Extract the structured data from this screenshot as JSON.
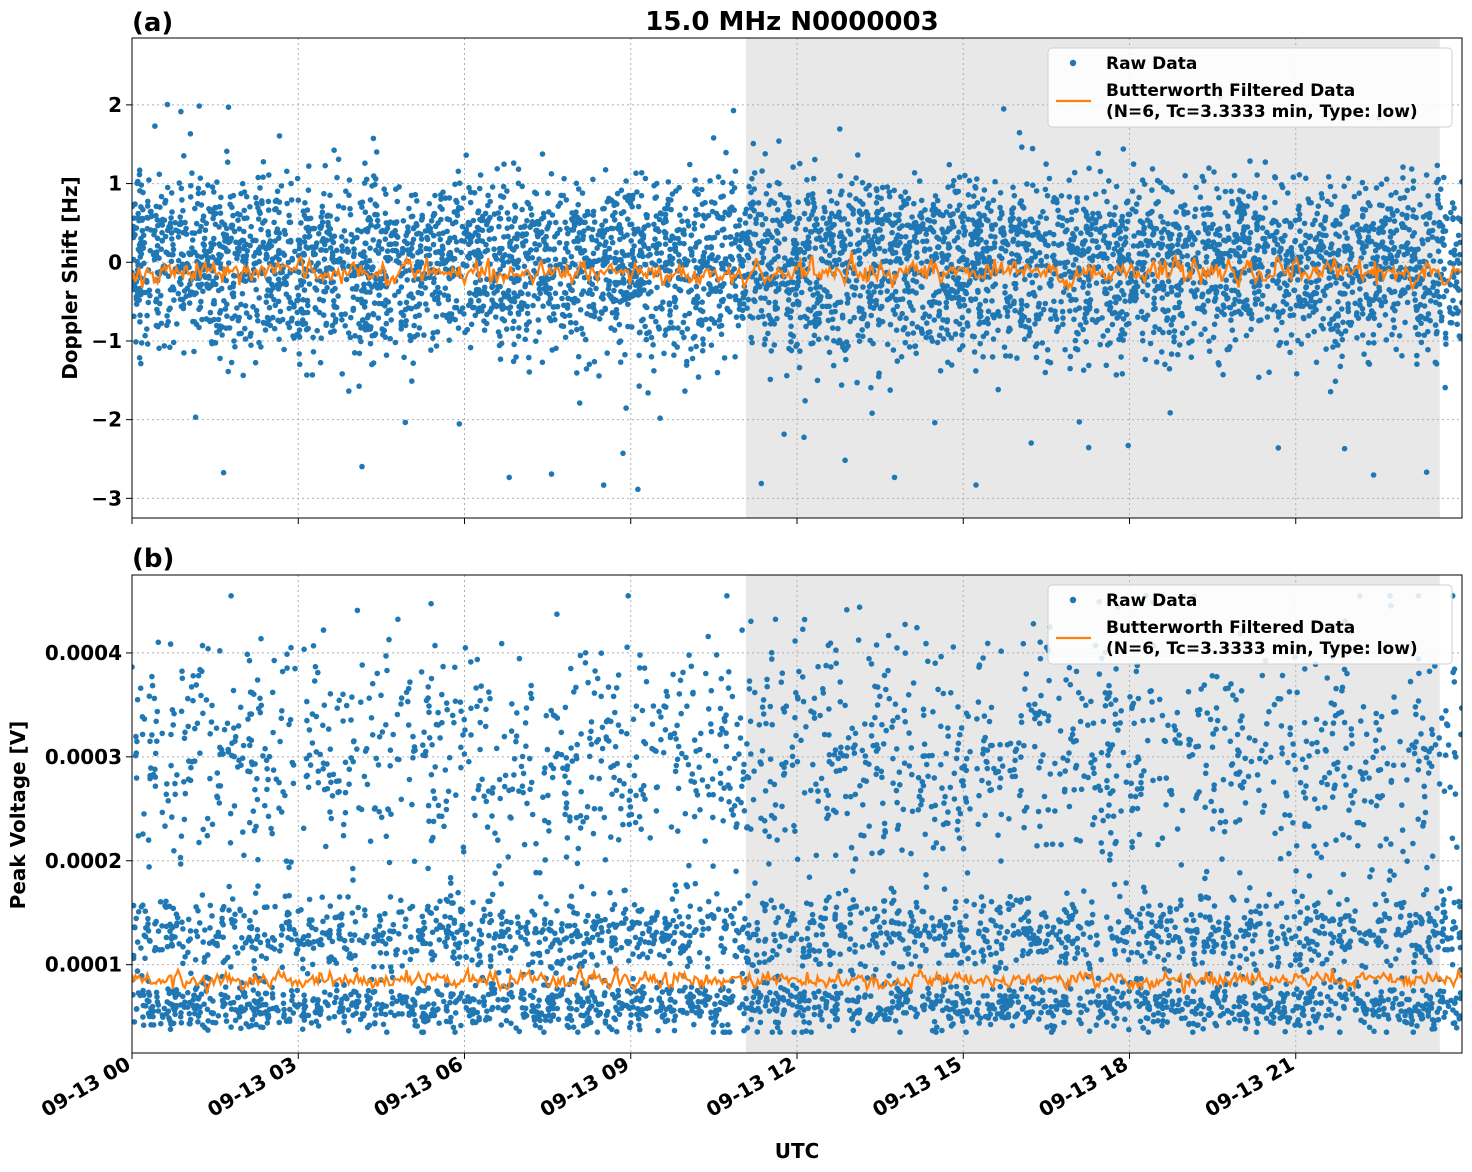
{
  "figure": {
    "title": "15.0 MHz N0000003",
    "xlabel": "UTC",
    "x_ticks": [
      "09-13 00",
      "09-13 03",
      "09-13 06",
      "09-13 09",
      "09-13 12",
      "09-13 15",
      "09-13 18",
      "09-13 21"
    ]
  },
  "chart_data": [
    {
      "panel": "(a)",
      "type": "scatter",
      "ylabel": "Doppler Shift [Hz]",
      "x_unit": "hours UTC on 09-13",
      "xlim": [
        0,
        24
      ],
      "ylim": [
        -3.25,
        2.85
      ],
      "y_ticks": [
        "2",
        "1",
        "0",
        "−1",
        "−2",
        "−3"
      ],
      "y_tick_values": [
        2,
        1,
        0,
        -1,
        -2,
        -3
      ],
      "grid": true,
      "legend_position": "top-right",
      "shaded_interval": [
        11.08,
        23.6
      ],
      "series": [
        {
          "name": "Raw Data",
          "kind": "points",
          "color": "#1f77b4",
          "distribution": {
            "bands": [
              {
                "center": -0.45,
                "spread": 0.42
              },
              {
                "center": 0.35,
                "spread": 0.38
              }
            ],
            "outlier_range": [
              -2.98,
              2.1
            ]
          }
        },
        {
          "name": "Butterworth Filtered Data\n(N=6, Tc=3.3333 min, Type: low)",
          "kind": "line",
          "color": "#ff7f0e",
          "distribution": {
            "mean": -0.12,
            "amplitude": 0.14,
            "range": [
              -0.45,
              0.3
            ]
          }
        }
      ]
    },
    {
      "panel": "(b)",
      "type": "scatter",
      "ylabel": "Peak Voltage [V]",
      "x_unit": "hours UTC on 09-13",
      "xlim": [
        0,
        24
      ],
      "ylim": [
        1.5e-05,
        0.000475
      ],
      "y_ticks": [
        "0.0004",
        "0.0003",
        "0.0002",
        "0.0001"
      ],
      "y_tick_values": [
        0.0004,
        0.0003,
        0.0002,
        0.0001
      ],
      "grid": true,
      "legend_position": "top-right",
      "shaded_interval": [
        11.08,
        23.6
      ],
      "series": [
        {
          "name": "Raw Data",
          "kind": "points",
          "color": "#1f77b4",
          "distribution": {
            "bands": [
              {
                "center": 6e-05,
                "spread": 1.2e-05
              },
              {
                "center": 0.00013,
                "spread": 2e-05
              },
              {
                "center": 0.0003,
                "spread": 4e-05
              }
            ],
            "outlier_range": [
              3.5e-05,
              0.000455
            ]
          }
        },
        {
          "name": "Butterworth Filtered Data\n(N=6, Tc=3.3333 min, Type: low)",
          "kind": "line",
          "color": "#ff7f0e",
          "distribution": {
            "mean": 8.5e-05,
            "amplitude": 7.5e-06,
            "range": [
              7.2e-05,
              0.000128
            ]
          }
        }
      ]
    }
  ]
}
